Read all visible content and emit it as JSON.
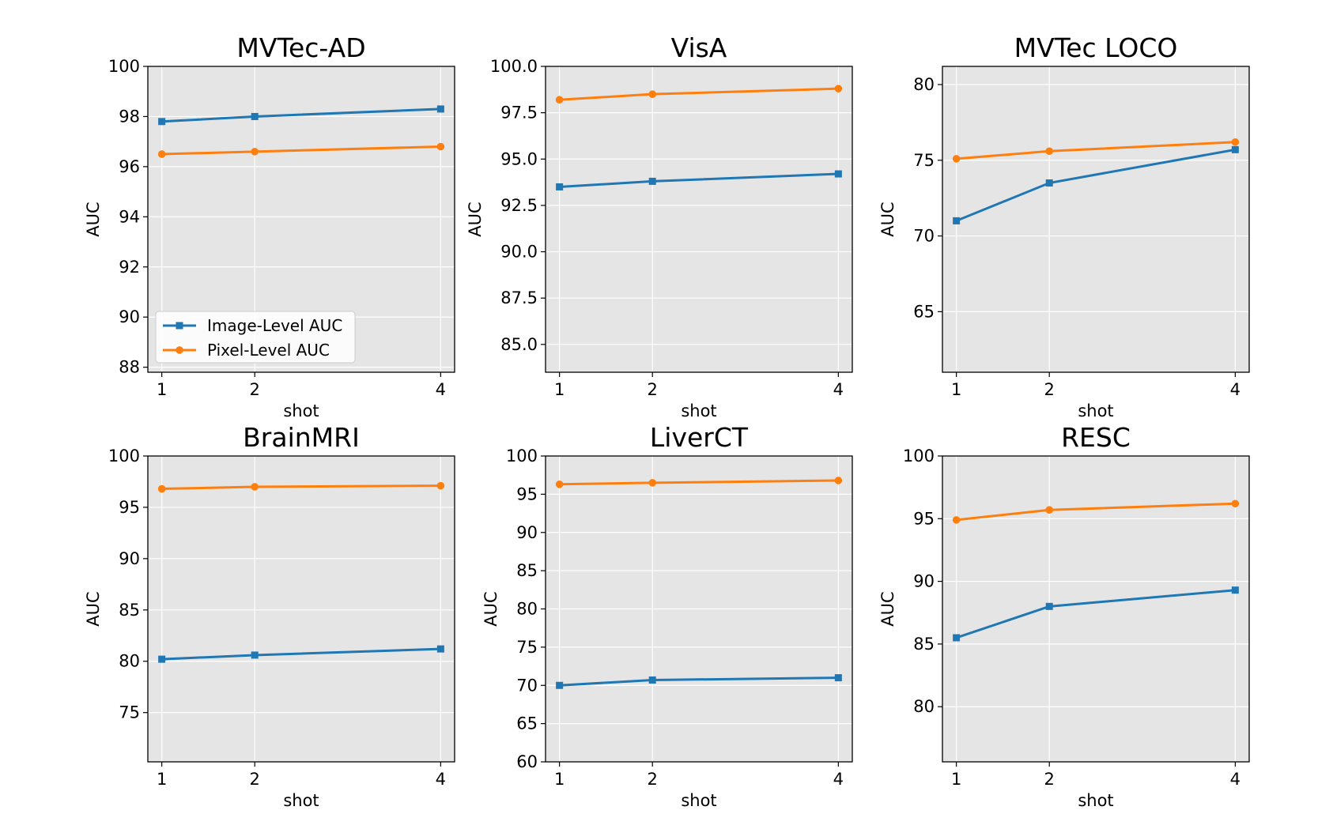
{
  "figure": {
    "series_colors": {
      "image": "#1f77b4",
      "pixel": "#ff7f0e"
    },
    "plot_background": "#e5e5e5",
    "grid": true,
    "legend": {
      "placement": "lower-left",
      "panel": 0,
      "entries": [
        "Image-Level AUC",
        "Pixel-Level AUC"
      ]
    }
  },
  "chart_data": [
    {
      "type": "line",
      "title": "MVTec-AD",
      "xlabel": "shot",
      "ylabel": "AUC",
      "x": [
        1,
        2,
        4
      ],
      "xticks": [
        "1",
        "2",
        "4"
      ],
      "ylim": [
        87.8,
        100.0
      ],
      "yticks": [
        "88",
        "90",
        "92",
        "94",
        "96",
        "98",
        "100"
      ],
      "ytick_values": [
        88,
        90,
        92,
        94,
        96,
        98,
        100
      ],
      "series": [
        {
          "name": "Image-Level AUC",
          "marker": "square",
          "values": [
            97.8,
            98.0,
            98.3
          ]
        },
        {
          "name": "Pixel-Level AUC",
          "marker": "circle",
          "values": [
            96.5,
            96.6,
            96.8
          ]
        }
      ]
    },
    {
      "type": "line",
      "title": "VisA",
      "xlabel": "shot",
      "ylabel": "AUC",
      "x": [
        1,
        2,
        4
      ],
      "xticks": [
        "1",
        "2",
        "4"
      ],
      "ylim": [
        83.5,
        100.0
      ],
      "yticks": [
        "85.0",
        "87.5",
        "90.0",
        "92.5",
        "95.0",
        "97.5",
        "100.0"
      ],
      "ytick_values": [
        85,
        87.5,
        90,
        92.5,
        95,
        97.5,
        100
      ],
      "series": [
        {
          "name": "Image-Level AUC",
          "marker": "square",
          "values": [
            93.5,
            93.8,
            94.2
          ]
        },
        {
          "name": "Pixel-Level AUC",
          "marker": "circle",
          "values": [
            98.2,
            98.5,
            98.8
          ]
        }
      ]
    },
    {
      "type": "line",
      "title": "MVTec LOCO",
      "xlabel": "shot",
      "ylabel": "AUC",
      "x": [
        1,
        2,
        4
      ],
      "xticks": [
        "1",
        "2",
        "4"
      ],
      "ylim": [
        61.0,
        81.2
      ],
      "yticks": [
        "65",
        "70",
        "75",
        "80"
      ],
      "ytick_values": [
        65,
        70,
        75,
        80
      ],
      "series": [
        {
          "name": "Image-Level AUC",
          "marker": "square",
          "values": [
            71.0,
            73.5,
            75.7
          ]
        },
        {
          "name": "Pixel-Level AUC",
          "marker": "circle",
          "values": [
            75.1,
            75.6,
            76.2
          ]
        }
      ]
    },
    {
      "type": "line",
      "title": "BrainMRI",
      "xlabel": "shot",
      "ylabel": "AUC",
      "x": [
        1,
        2,
        4
      ],
      "xticks": [
        "1",
        "2",
        "4"
      ],
      "ylim": [
        70.2,
        100.0
      ],
      "yticks": [
        "75",
        "80",
        "85",
        "90",
        "95",
        "100"
      ],
      "ytick_values": [
        75,
        80,
        85,
        90,
        95,
        100
      ],
      "series": [
        {
          "name": "Image-Level AUC",
          "marker": "square",
          "values": [
            80.2,
            80.6,
            81.2
          ]
        },
        {
          "name": "Pixel-Level AUC",
          "marker": "circle",
          "values": [
            96.8,
            97.0,
            97.1
          ]
        }
      ]
    },
    {
      "type": "line",
      "title": "LiverCT",
      "xlabel": "shot",
      "ylabel": "AUC",
      "x": [
        1,
        2,
        4
      ],
      "xticks": [
        "1",
        "2",
        "4"
      ],
      "ylim": [
        60.0,
        100.0
      ],
      "yticks": [
        "60",
        "65",
        "70",
        "75",
        "80",
        "85",
        "90",
        "95",
        "100"
      ],
      "ytick_values": [
        60,
        65,
        70,
        75,
        80,
        85,
        90,
        95,
        100
      ],
      "series": [
        {
          "name": "Image-Level AUC",
          "marker": "square",
          "values": [
            70.0,
            70.7,
            71.0
          ]
        },
        {
          "name": "Pixel-Level AUC",
          "marker": "circle",
          "values": [
            96.3,
            96.5,
            96.8
          ]
        }
      ]
    },
    {
      "type": "line",
      "title": "RESC",
      "xlabel": "shot",
      "ylabel": "AUC",
      "x": [
        1,
        2,
        4
      ],
      "xticks": [
        "1",
        "2",
        "4"
      ],
      "ylim": [
        75.6,
        100.0
      ],
      "yticks": [
        "80",
        "85",
        "90",
        "95",
        "100"
      ],
      "ytick_values": [
        80,
        85,
        90,
        95,
        100
      ],
      "series": [
        {
          "name": "Image-Level AUC",
          "marker": "square",
          "values": [
            85.5,
            88.0,
            89.3
          ]
        },
        {
          "name": "Pixel-Level AUC",
          "marker": "circle",
          "values": [
            94.9,
            95.7,
            96.2
          ]
        }
      ]
    }
  ]
}
